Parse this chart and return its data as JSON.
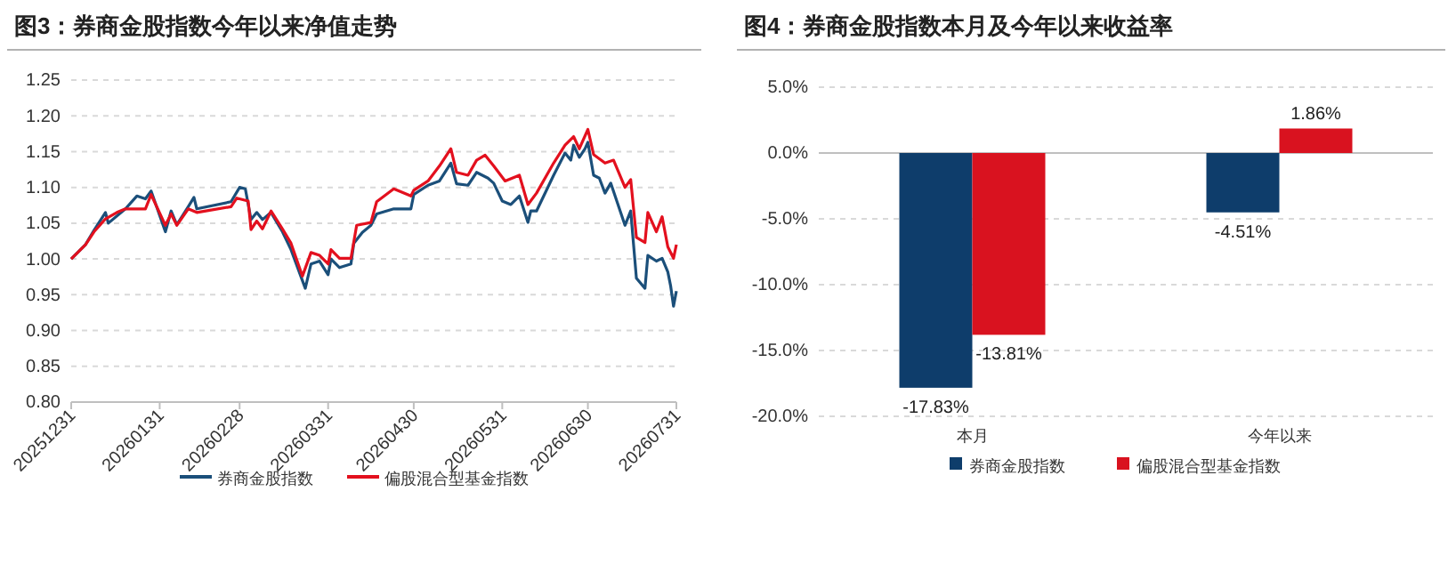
{
  "chart_data": [
    {
      "type": "line",
      "title": "图3：券商金股指数今年以来净值走势",
      "xlim": [
        "2025-12-31",
        "2026-07-31"
      ],
      "xticks": [
        {
          "value": "2025-12-31",
          "label": "20251231"
        },
        {
          "value": "2026-01-31",
          "label": "20260131"
        },
        {
          "value": "2026-02-28",
          "label": "20260228"
        },
        {
          "value": "2026-03-31",
          "label": "20260331"
        },
        {
          "value": "2026-04-30",
          "label": "20260430"
        },
        {
          "value": "2026-05-31",
          "label": "20260531"
        },
        {
          "value": "2026-06-30",
          "label": "20260630"
        },
        {
          "value": "2026-07-31",
          "label": "20260731"
        }
      ],
      "ylim": [
        0.8,
        1.25
      ],
      "yticks": [
        {
          "value": 0.8,
          "label": "0.80"
        },
        {
          "value": 0.85,
          "label": "0.85"
        },
        {
          "value": 0.9,
          "label": "0.90"
        },
        {
          "value": 0.95,
          "label": "0.95"
        },
        {
          "value": 1,
          "label": "1.00"
        },
        {
          "value": 1.05,
          "label": "1.05"
        },
        {
          "value": 1.1,
          "label": "1.10"
        },
        {
          "value": 1.15,
          "label": "1.15"
        },
        {
          "value": 1.2,
          "label": "1.20"
        },
        {
          "value": 1.25,
          "label": "1.25"
        }
      ],
      "grid": "y",
      "legend": "bottom",
      "line_style": "solid",
      "marker": "none",
      "series": [
        {
          "name": "券商金股指数",
          "color": "#1b4f7a",
          "x": [
            "2025-12-31",
            "2026-01-05",
            "2026-01-08",
            "2026-01-12",
            "2026-01-13",
            "2026-01-19",
            "2026-01-23",
            "2026-01-26",
            "2026-01-28",
            "2026-02-02",
            "2026-02-04",
            "2026-02-06",
            "2026-02-10",
            "2026-02-12",
            "2026-02-13",
            "2026-02-25",
            "2026-02-28",
            "2026-03-02",
            "2026-03-04",
            "2026-03-06",
            "2026-03-08",
            "2026-03-11",
            "2026-03-15",
            "2026-03-18",
            "2026-03-23",
            "2026-03-25",
            "2026-03-28",
            "2026-03-31",
            "2026-04-01",
            "2026-04-04",
            "2026-04-08",
            "2026-04-09",
            "2026-04-12",
            "2026-04-15",
            "2026-04-17",
            "2026-04-23",
            "2026-04-29",
            "2026-04-30",
            "2026-05-05",
            "2026-05-09",
            "2026-05-13",
            "2026-05-15",
            "2026-05-19",
            "2026-05-22",
            "2026-05-24",
            "2026-05-26",
            "2026-05-28",
            "2026-05-31",
            "2026-06-03",
            "2026-06-06",
            "2026-06-09",
            "2026-06-10",
            "2026-06-12",
            "2026-06-18",
            "2026-06-22",
            "2026-06-24",
            "2026-06-25",
            "2026-06-27",
            "2026-06-29",
            "2026-06-30",
            "2026-07-02",
            "2026-07-04",
            "2026-07-06",
            "2026-07-08",
            "2026-07-13",
            "2026-07-15",
            "2026-07-17",
            "2026-07-20",
            "2026-07-21",
            "2026-07-24",
            "2026-07-26",
            "2026-07-28",
            "2026-07-29",
            "2026-07-30",
            "2026-07-31"
          ],
          "values": [
            1.0,
            1.02,
            1.04,
            1.065,
            1.05,
            1.07,
            1.088,
            1.084,
            1.095,
            1.038,
            1.067,
            1.048,
            1.073,
            1.086,
            1.07,
            1.08,
            1.1,
            1.098,
            1.055,
            1.065,
            1.055,
            1.065,
            1.038,
            1.013,
            0.959,
            0.993,
            0.997,
            0.978,
            1.0,
            0.988,
            0.993,
            1.022,
            1.037,
            1.047,
            1.063,
            1.07,
            1.07,
            1.09,
            1.103,
            1.109,
            1.134,
            1.105,
            1.103,
            1.121,
            1.117,
            1.113,
            1.106,
            1.081,
            1.076,
            1.088,
            1.051,
            1.067,
            1.067,
            1.117,
            1.148,
            1.138,
            1.159,
            1.142,
            1.154,
            1.163,
            1.117,
            1.113,
            1.092,
            1.106,
            1.047,
            1.067,
            0.973,
            0.959,
            1.005,
            0.997,
            1.001,
            0.982,
            0.962,
            0.934,
            0.955
          ]
        },
        {
          "name": "偏股混合型基金指数",
          "color": "#e3101e",
          "x": [
            "2025-12-31",
            "2026-01-05",
            "2026-01-08",
            "2026-01-12",
            "2026-01-16",
            "2026-01-19",
            "2026-01-26",
            "2026-01-28",
            "2026-02-02",
            "2026-02-04",
            "2026-02-06",
            "2026-02-10",
            "2026-02-13",
            "2026-02-25",
            "2026-02-27",
            "2026-03-03",
            "2026-03-04",
            "2026-03-06",
            "2026-03-08",
            "2026-03-11",
            "2026-03-15",
            "2026-03-18",
            "2026-03-22",
            "2026-03-25",
            "2026-03-28",
            "2026-03-31",
            "2026-04-01",
            "2026-04-04",
            "2026-04-08",
            "2026-04-10",
            "2026-04-15",
            "2026-04-17",
            "2026-04-23",
            "2026-04-29",
            "2026-04-30",
            "2026-05-05",
            "2026-05-09",
            "2026-05-13",
            "2026-05-15",
            "2026-05-19",
            "2026-05-22",
            "2026-05-25",
            "2026-05-28",
            "2026-06-01",
            "2026-06-06",
            "2026-06-09",
            "2026-06-12",
            "2026-06-18",
            "2026-06-22",
            "2026-06-25",
            "2026-06-27",
            "2026-06-30",
            "2026-07-02",
            "2026-07-06",
            "2026-07-09",
            "2026-07-13",
            "2026-07-15",
            "2026-07-17",
            "2026-07-20",
            "2026-07-21",
            "2026-07-24",
            "2026-07-26",
            "2026-07-28",
            "2026-07-30",
            "2026-07-31"
          ],
          "values": [
            1.0,
            1.02,
            1.038,
            1.056,
            1.065,
            1.07,
            1.07,
            1.09,
            1.047,
            1.063,
            1.047,
            1.07,
            1.065,
            1.073,
            1.085,
            1.081,
            1.041,
            1.053,
            1.042,
            1.067,
            1.042,
            1.022,
            0.976,
            1.009,
            1.005,
            0.993,
            1.013,
            1.001,
            1.001,
            1.047,
            1.051,
            1.08,
            1.098,
            1.088,
            1.096,
            1.109,
            1.13,
            1.154,
            1.121,
            1.117,
            1.138,
            1.145,
            1.13,
            1.109,
            1.117,
            1.076,
            1.092,
            1.134,
            1.159,
            1.171,
            1.154,
            1.181,
            1.146,
            1.134,
            1.138,
            1.1,
            1.111,
            1.03,
            1.023,
            1.065,
            1.038,
            1.059,
            1.017,
            1.001,
            1.02
          ]
        }
      ]
    },
    {
      "type": "bar",
      "title": "图4：券商金股指数本月及今年以来收益率",
      "categories": [
        "本月",
        "今年以来"
      ],
      "ylim": [
        -20,
        5
      ],
      "yticks": [
        {
          "value": -20,
          "label": "-20.0%"
        },
        {
          "value": -15,
          "label": "-15.0%"
        },
        {
          "value": -10,
          "label": "-10.0%"
        },
        {
          "value": -5,
          "label": "-5.0%"
        },
        {
          "value": 0,
          "label": "0.0%"
        },
        {
          "value": 5,
          "label": "5.0%"
        }
      ],
      "grid": "y",
      "legend": "bottom",
      "series": [
        {
          "name": "券商金股指数",
          "color": "#0e3d6b",
          "values": [
            -17.83,
            -4.51
          ],
          "value_labels": [
            "-17.83%",
            "-4.51%"
          ]
        },
        {
          "name": "偏股混合型基金指数",
          "color": "#d9121f",
          "values": [
            -13.81,
            1.86
          ],
          "value_labels": [
            "-13.81%",
            "1.86%"
          ]
        }
      ]
    }
  ]
}
